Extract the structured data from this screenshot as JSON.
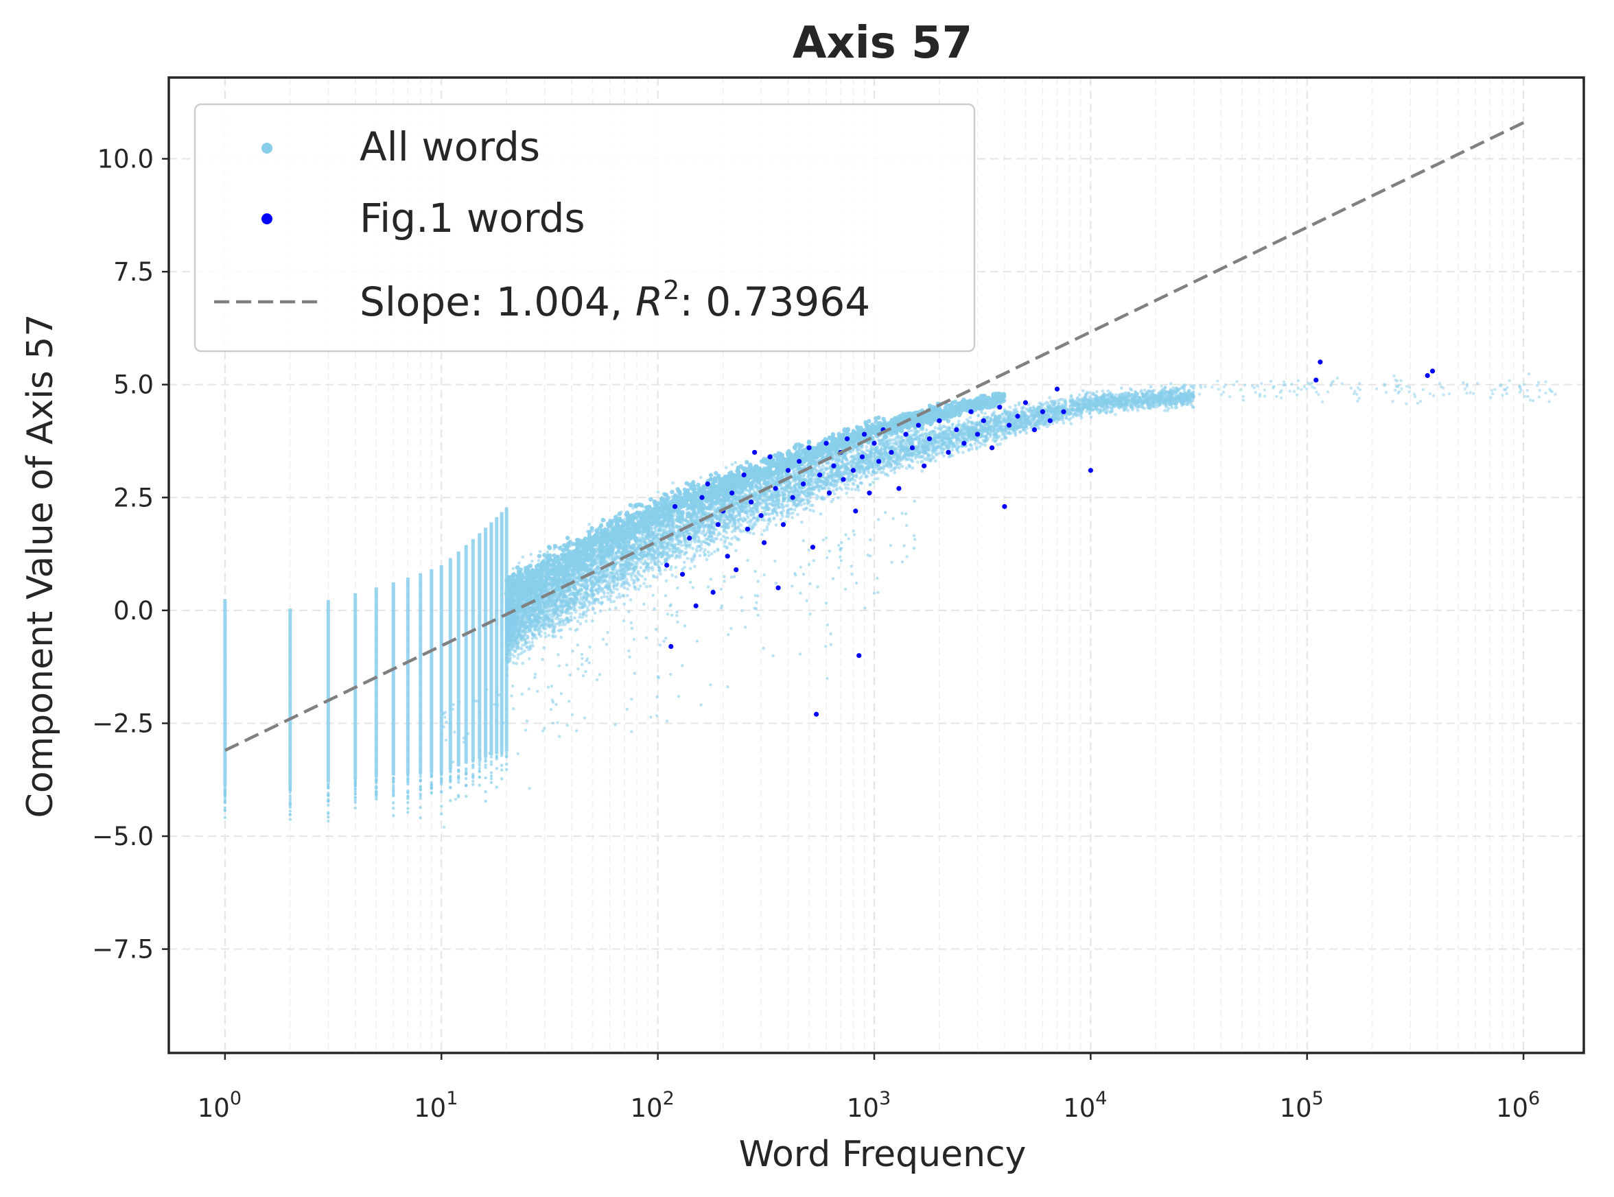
{
  "chart_data": {
    "type": "scatter",
    "title": "Axis 57",
    "xlabel": "Word Frequency",
    "ylabel": "Component Value of Axis 57",
    "xscale": "log",
    "xlim": [
      0.55,
      1900000
    ],
    "ylim": [
      -9.8,
      11.8
    ],
    "grid": true,
    "legend_position": "top-left",
    "x_ticks": [
      {
        "base": "10",
        "exp": "0",
        "value": 1
      },
      {
        "base": "10",
        "exp": "1",
        "value": 10
      },
      {
        "base": "10",
        "exp": "2",
        "value": 100
      },
      {
        "base": "10",
        "exp": "3",
        "value": 1000
      },
      {
        "base": "10",
        "exp": "4",
        "value": 10000
      },
      {
        "base": "10",
        "exp": "5",
        "value": 100000
      },
      {
        "base": "10",
        "exp": "6",
        "value": 1000000
      }
    ],
    "y_ticks": [
      "10.0",
      "7.5",
      "5.0",
      "2.5",
      "0.0",
      "−2.5",
      "−5.0",
      "−7.5"
    ],
    "y_tick_values": [
      10.0,
      7.5,
      5.0,
      2.5,
      0.0,
      -2.5,
      -5.0,
      -7.5
    ],
    "series": [
      {
        "name": "All words",
        "color": "#87ceeb",
        "description_values": {
          "integer_frequency_columns": [
            1,
            2,
            3,
            4,
            5,
            6,
            7,
            8,
            9,
            10,
            11,
            12,
            13,
            14,
            15,
            16,
            17,
            18,
            19,
            20
          ],
          "column_y_ranges": [
            [
              -2.0,
              2.1
            ],
            [
              -3.0,
              1.7
            ],
            [
              -3.5,
              1.3
            ],
            [
              -4.0,
              1.2
            ],
            [
              -4.0,
              1.1
            ]
          ],
          "trend": [
            [
              1,
              -1.8
            ],
            [
              10,
              -1.0
            ],
            [
              100,
              1.6
            ],
            [
              1000,
              3.4
            ],
            [
              10000,
              4.6
            ],
            [
              100000,
              4.9
            ],
            [
              1000000,
              5.1
            ]
          ]
        }
      },
      {
        "name": "Fig.1 words",
        "color": "#0000ff",
        "points": [
          [
            110,
            1.0
          ],
          [
            115,
            -0.8
          ],
          [
            120,
            2.3
          ],
          [
            130,
            0.8
          ],
          [
            140,
            1.6
          ],
          [
            150,
            0.1
          ],
          [
            160,
            2.5
          ],
          [
            170,
            2.8
          ],
          [
            180,
            0.4
          ],
          [
            190,
            1.9
          ],
          [
            200,
            2.2
          ],
          [
            210,
            1.2
          ],
          [
            220,
            2.6
          ],
          [
            230,
            0.9
          ],
          [
            250,
            3.0
          ],
          [
            260,
            1.8
          ],
          [
            270,
            2.4
          ],
          [
            280,
            3.5
          ],
          [
            300,
            2.1
          ],
          [
            310,
            1.5
          ],
          [
            330,
            3.4
          ],
          [
            350,
            2.7
          ],
          [
            360,
            0.5
          ],
          [
            380,
            1.9
          ],
          [
            400,
            3.1
          ],
          [
            420,
            2.5
          ],
          [
            450,
            3.3
          ],
          [
            470,
            2.8
          ],
          [
            500,
            3.6
          ],
          [
            520,
            1.4
          ],
          [
            540,
            -2.3
          ],
          [
            560,
            3.0
          ],
          [
            600,
            3.7
          ],
          [
            620,
            2.6
          ],
          [
            650,
            3.2
          ],
          [
            700,
            3.5
          ],
          [
            720,
            2.9
          ],
          [
            750,
            3.8
          ],
          [
            800,
            3.1
          ],
          [
            820,
            2.2
          ],
          [
            850,
            -1.0
          ],
          [
            880,
            3.4
          ],
          [
            900,
            3.9
          ],
          [
            950,
            2.6
          ],
          [
            1000,
            3.7
          ],
          [
            1050,
            3.3
          ],
          [
            1100,
            4.0
          ],
          [
            1200,
            3.5
          ],
          [
            1300,
            2.7
          ],
          [
            1400,
            3.9
          ],
          [
            1500,
            3.6
          ],
          [
            1600,
            4.1
          ],
          [
            1700,
            3.2
          ],
          [
            1800,
            3.8
          ],
          [
            2000,
            4.2
          ],
          [
            2200,
            3.5
          ],
          [
            2400,
            4.0
          ],
          [
            2600,
            3.7
          ],
          [
            2800,
            4.4
          ],
          [
            3000,
            3.9
          ],
          [
            3200,
            4.2
          ],
          [
            3500,
            3.6
          ],
          [
            3800,
            4.5
          ],
          [
            4000,
            2.3
          ],
          [
            4200,
            4.1
          ],
          [
            4600,
            4.3
          ],
          [
            5000,
            4.6
          ],
          [
            5500,
            4.0
          ],
          [
            6000,
            4.4
          ],
          [
            6500,
            4.2
          ],
          [
            7000,
            4.9
          ],
          [
            7500,
            4.4
          ],
          [
            10000,
            3.1
          ],
          [
            110000,
            5.1
          ],
          [
            115000,
            5.5
          ],
          [
            360000,
            5.2
          ],
          [
            380000,
            5.3
          ]
        ]
      },
      {
        "name": "Slope: 1.004, R²: 0.73964",
        "legend_prefix": "Slope: 1.004, ",
        "legend_r": "R",
        "legend_sup": "2",
        "legend_suffix": ": 0.73964",
        "type": "line",
        "style": "dashed",
        "color": "#808080",
        "x": [
          1,
          1000000
        ],
        "y": [
          -3.1,
          10.8
        ]
      }
    ]
  }
}
